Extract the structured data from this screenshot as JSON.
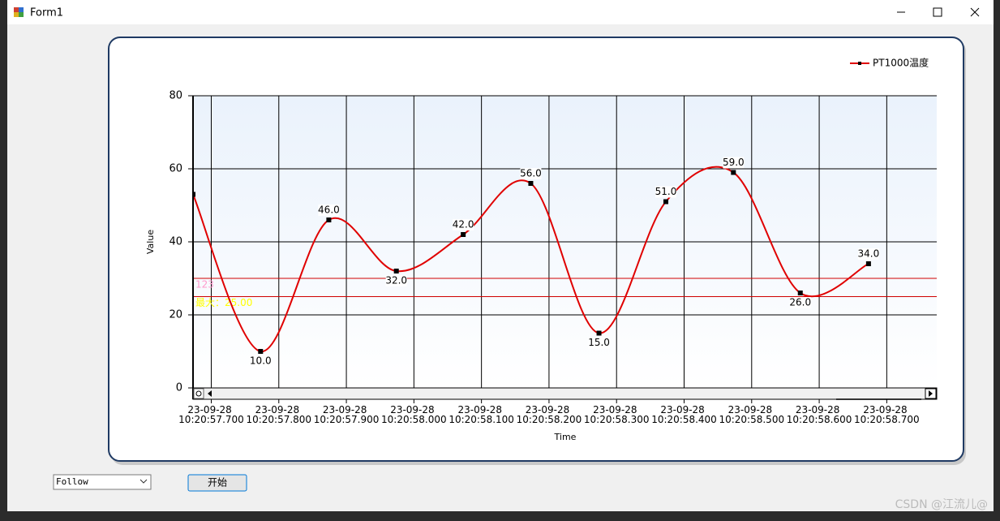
{
  "window": {
    "title": "Form1"
  },
  "chart_data": {
    "type": "line",
    "x_label": "Time",
    "y_label": "Value",
    "x": [
      "23-09-28 10:20:57.673",
      "23-09-28 10:20:57.773",
      "23-09-28 10:20:57.874",
      "23-09-28 10:20:57.974",
      "23-09-28 10:20:58.073",
      "23-09-28 10:20:58.173",
      "23-09-28 10:20:58.274",
      "23-09-28 10:20:58.373",
      "23-09-28 10:20:58.473",
      "23-09-28 10:20:58.572",
      "23-09-28 10:20:58.673"
    ],
    "series": [
      {
        "name": "PT1000温度",
        "color": "#e00000",
        "values": [
          53,
          10,
          46,
          32,
          42,
          56,
          15,
          51,
          59,
          26,
          34
        ],
        "value_labels": [
          null,
          "10.0",
          "46.0",
          "32.0",
          "42.0",
          "56.0",
          "15.0",
          "51.0",
          "59.0",
          "26.0",
          "34.0"
        ]
      }
    ],
    "xlim": [
      "23-09-28 10:20:57.673",
      "23-09-28 10:20:58.774"
    ],
    "xticks": [
      "23-09-28 10:20:57.700",
      "23-09-28 10:20:57.800",
      "23-09-28 10:20:57.900",
      "23-09-28 10:20:58.000",
      "23-09-28 10:20:58.100",
      "23-09-28 10:20:58.200",
      "23-09-28 10:20:58.300",
      "23-09-28 10:20:58.400",
      "23-09-28 10:20:58.500",
      "23-09-28 10:20:58.600",
      "23-09-28 10:20:58.700"
    ],
    "ylim": [
      0,
      80
    ],
    "yticks": [
      0,
      20,
      40,
      60,
      80
    ],
    "grid": true,
    "legend": "top-right",
    "strip_lines": [
      {
        "value": 30,
        "label": "123",
        "color": "#ff99cc"
      },
      {
        "value": 25,
        "label": "最大：25.00",
        "color": "#ffff00"
      }
    ]
  },
  "controls": {
    "combo": "Follow",
    "button": "开始"
  },
  "watermark": "CSDN @江流儿@"
}
